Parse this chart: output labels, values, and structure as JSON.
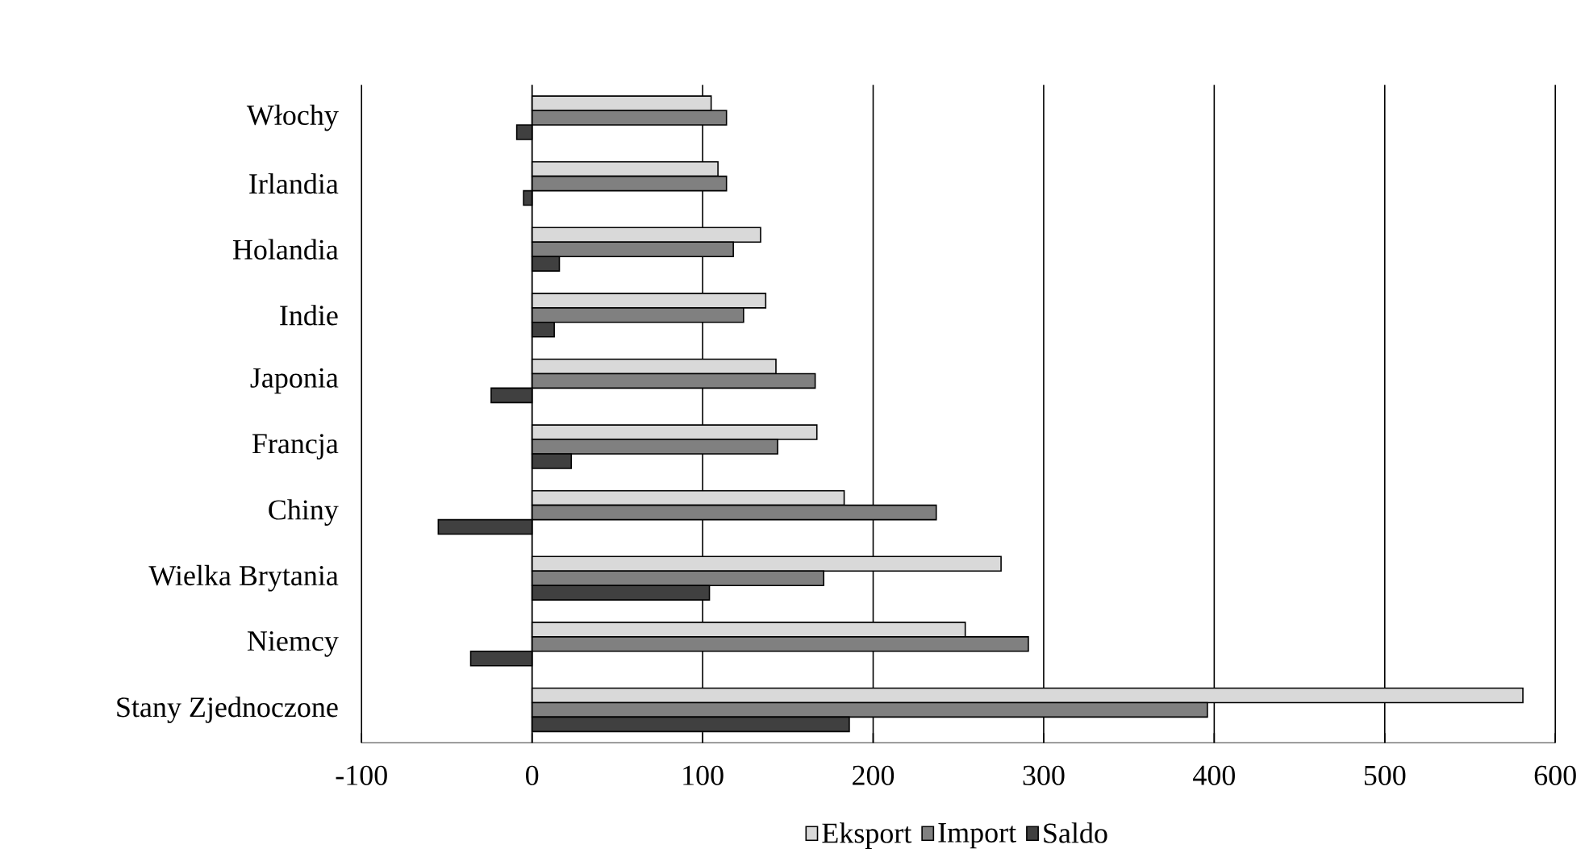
{
  "chart_data": {
    "type": "bar",
    "orientation": "horizontal",
    "categories": [
      "Włochy",
      "Irlandia",
      "Holandia",
      "Indie",
      "Japonia",
      "Francja",
      "Chiny",
      "Wielka Brytania",
      "Niemcy",
      "Stany Zjednoczone"
    ],
    "series": [
      {
        "name": "Eksport",
        "color": "#d9d9d9",
        "values": [
          105,
          109,
          134,
          137,
          143,
          167,
          183,
          275,
          254,
          581
        ]
      },
      {
        "name": "Import",
        "color": "#808080",
        "values": [
          114,
          114,
          118,
          124,
          166,
          144,
          237,
          171,
          291,
          396
        ]
      },
      {
        "name": "Saldo",
        "color": "#404040",
        "values": [
          -9,
          -5,
          16,
          13,
          -24,
          23,
          -55,
          104,
          -36,
          186
        ]
      }
    ],
    "xlim": [
      -100,
      600
    ],
    "xticks": [
      -100,
      0,
      100,
      200,
      300,
      400,
      500,
      600
    ],
    "grid": "x",
    "legend": "bottom"
  }
}
